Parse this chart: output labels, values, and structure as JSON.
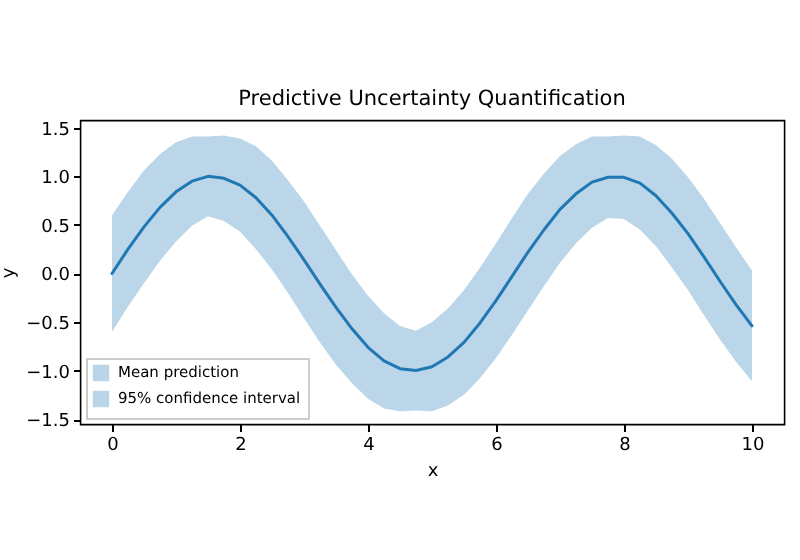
{
  "chart_data": {
    "type": "line",
    "title": "Predictive Uncertainty Quantification",
    "xlabel": "x",
    "ylabel": "y",
    "x": [
      0,
      0.25,
      0.5,
      0.75,
      1,
      1.25,
      1.5,
      1.75,
      2,
      2.25,
      2.5,
      2.75,
      3,
      3.25,
      3.5,
      3.75,
      4,
      4.25,
      4.5,
      4.75,
      5,
      5.25,
      5.5,
      5.75,
      6,
      6.25,
      6.5,
      6.75,
      7,
      7.25,
      7.5,
      7.75,
      8,
      8.25,
      8.5,
      8.75,
      9,
      9.25,
      9.5,
      9.75,
      10
    ],
    "series": [
      {
        "name": "Mean prediction",
        "color": "#1f77b4",
        "values": [
          0,
          0.25,
          0.48,
          0.68,
          0.84,
          0.95,
          1.0,
          0.98,
          0.91,
          0.78,
          0.6,
          0.38,
          0.14,
          -0.11,
          -0.35,
          -0.57,
          -0.76,
          -0.9,
          -0.98,
          -1.0,
          -0.96,
          -0.86,
          -0.71,
          -0.51,
          -0.28,
          -0.03,
          0.22,
          0.45,
          0.66,
          0.82,
          0.94,
          0.99,
          0.99,
          0.93,
          0.8,
          0.62,
          0.41,
          0.17,
          -0.08,
          -0.32,
          -0.54
        ],
        "lower": [
          -0.6,
          -0.34,
          -0.1,
          0.13,
          0.33,
          0.49,
          0.59,
          0.54,
          0.43,
          0.25,
          0.04,
          -0.2,
          -0.46,
          -0.71,
          -0.94,
          -1.13,
          -1.29,
          -1.39,
          -1.42,
          -1.41,
          -1.42,
          -1.36,
          -1.25,
          -1.08,
          -0.87,
          -0.63,
          -0.38,
          -0.13,
          0.11,
          0.31,
          0.47,
          0.57,
          0.56,
          0.45,
          0.28,
          0.06,
          -0.17,
          -0.43,
          -0.68,
          -0.91,
          -1.11
        ],
        "upper": [
          0.6,
          0.84,
          1.06,
          1.23,
          1.35,
          1.41,
          1.41,
          1.42,
          1.39,
          1.31,
          1.16,
          0.96,
          0.74,
          0.49,
          0.24,
          -0.01,
          -0.23,
          -0.41,
          -0.54,
          -0.59,
          -0.5,
          -0.36,
          -0.17,
          0.06,
          0.31,
          0.57,
          0.82,
          1.03,
          1.21,
          1.33,
          1.41,
          1.41,
          1.42,
          1.41,
          1.32,
          1.18,
          0.99,
          0.77,
          0.52,
          0.27,
          0.03
        ]
      }
    ],
    "annotations": [
      "95% confidence interval"
    ],
    "xlim": [
      -0.5,
      10.5
    ],
    "ylim": [
      -1.55,
      1.58
    ],
    "xticks": [
      0,
      2,
      4,
      6,
      8,
      10
    ],
    "yticks": [
      {
        "value": -1.5,
        "label": "−1.5"
      },
      {
        "value": -1,
        "label": "−1.0"
      },
      {
        "value": -0.5,
        "label": "−0.5"
      },
      {
        "value": 0,
        "label": "0.0"
      },
      {
        "value": 0.5,
        "label": "0.5"
      },
      {
        "value": 1,
        "label": "1.0"
      },
      {
        "value": 1.5,
        "label": "1.5"
      }
    ],
    "legend": "bottom left",
    "grid": false
  }
}
